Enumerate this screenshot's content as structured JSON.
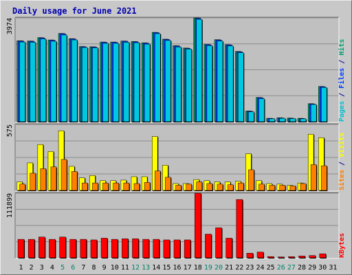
{
  "chart_data": {
    "type": "bar",
    "title": "Daily usage for June 2021",
    "days": [
      "1",
      "2",
      "3",
      "4",
      "5",
      "6",
      "7",
      "8",
      "9",
      "10",
      "11",
      "12",
      "13",
      "14",
      "15",
      "16",
      "17",
      "18",
      "19",
      "20",
      "21",
      "22",
      "23",
      "24",
      "25",
      "26",
      "27",
      "28",
      "29",
      "30",
      "31"
    ],
    "weekend_days": [
      "5",
      "6",
      "12",
      "13",
      "19",
      "20",
      "26",
      "27"
    ],
    "panels": [
      {
        "name": "hits-files-pages",
        "max_label": "3974",
        "ymax": 3974,
        "side_labels": [
          {
            "text": "Pages",
            "color": "#00c0d0"
          },
          {
            "text": " / ",
            "color": "#0000a0"
          },
          {
            "text": "Files",
            "color": "#0040ff"
          },
          {
            "text": " / ",
            "color": "#0000a0"
          },
          {
            "text": "Hits",
            "color": "#00a070"
          }
        ],
        "series": [
          {
            "name": "Hits",
            "color": "#00a070",
            "values": [
              3100,
              3090,
              3220,
              3130,
              3380,
              3180,
              2880,
              2870,
              3050,
              3050,
              3090,
              3070,
              3020,
              3420,
              3160,
              2910,
              2820,
              3974,
              2960,
              3140,
              2950,
              2690,
              410,
              930,
              130,
              150,
              140,
              130,
              690,
              1350,
              null
            ]
          },
          {
            "name": "Files",
            "color": "#0040ff",
            "values": [
              3090,
              3080,
              3210,
              3120,
              3370,
              3170,
              2870,
              2860,
              3040,
              3040,
              3080,
              3060,
              3010,
              3410,
              3150,
              2900,
              2810,
              3960,
              2950,
              3130,
              2940,
              2680,
              400,
              920,
              120,
              140,
              130,
              120,
              680,
              1340,
              null
            ]
          },
          {
            "name": "Pages",
            "color": "#00c8e0",
            "values": [
              3050,
              3040,
              3170,
              3080,
              3320,
              3130,
              2840,
              2830,
              3000,
              3000,
              3040,
              3020,
              2970,
              3370,
              3110,
              2860,
              2780,
              3920,
              2910,
              3090,
              2900,
              2640,
              380,
              880,
              110,
              130,
              120,
              110,
              660,
              1310,
              null
            ]
          }
        ]
      },
      {
        "name": "visits-sites",
        "max_label": "575",
        "ymax": 575,
        "side_labels": [
          {
            "text": "Sites",
            "color": "#ff8000"
          },
          {
            "text": " / ",
            "color": "#0000a0"
          },
          {
            "text": "Visits",
            "color": "#ffff00"
          }
        ],
        "series": [
          {
            "name": "Visits",
            "color": "#ffff00",
            "values": [
              75,
              240,
              400,
              340,
              520,
              210,
              110,
              130,
              85,
              85,
              90,
              120,
              120,
              470,
              220,
              60,
              60,
              95,
              85,
              75,
              75,
              80,
              320,
              85,
              60,
              55,
              45,
              65,
              490,
              460,
              null
            ]
          },
          {
            "name": "Sites",
            "color": "#ff8000",
            "values": [
              55,
              150,
              190,
              205,
              270,
              165,
              65,
              65,
              65,
              65,
              65,
              60,
              70,
              170,
              115,
              45,
              55,
              75,
              60,
              55,
              50,
              65,
              180,
              55,
              45,
              45,
              40,
              60,
              225,
              215,
              null
            ]
          }
        ]
      },
      {
        "name": "kbytes",
        "max_label": "111899",
        "ymax": 111899,
        "side_labels": [
          {
            "text": "KBytes",
            "color": "#ff0000"
          }
        ],
        "series": [
          {
            "name": "KBytes",
            "color": "#ff0000",
            "values": [
              32000,
              32000,
              36000,
              32000,
              36000,
              32000,
              32000,
              31000,
              34000,
              32000,
              33000,
              33000,
              32000,
              32000,
              31000,
              31000,
              31000,
              111899,
              41000,
              52000,
              34000,
              101000,
              8000,
              10000,
              2200,
              1500,
              2000,
              3200,
              4000,
              7000,
              null
            ]
          }
        ]
      }
    ]
  }
}
